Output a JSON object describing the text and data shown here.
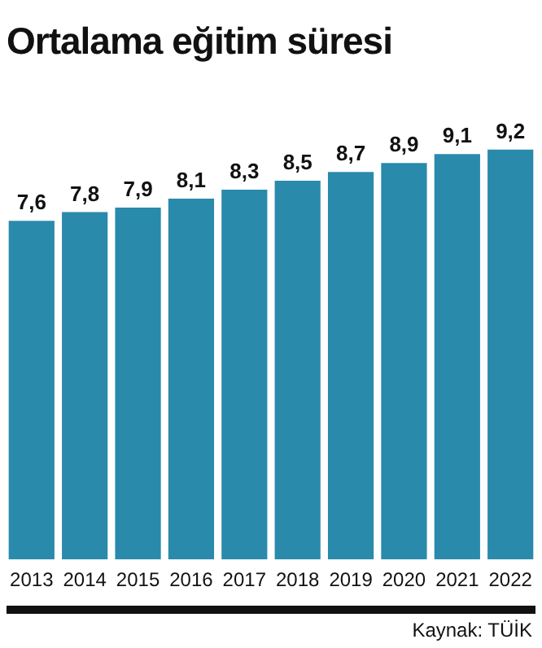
{
  "chart_data": {
    "type": "bar",
    "title": "Ortalama eğitim süresi",
    "categories": [
      "2013",
      "2014",
      "2015",
      "2016",
      "2017",
      "2018",
      "2019",
      "2020",
      "2021",
      "2022"
    ],
    "values": [
      7.6,
      7.8,
      7.9,
      8.1,
      8.3,
      8.5,
      8.7,
      8.9,
      9.1,
      9.2
    ],
    "color": "#2a8aab",
    "data_labels": true,
    "value_labels": [
      "7,6",
      "7,8",
      "7,9",
      "8,1",
      "8,3",
      "8,5",
      "8,7",
      "8,9",
      "9,1",
      "9,2"
    ],
    "grid": false,
    "legend": false,
    "tick_labels": "x",
    "annotations": [
      "Kaynak: TÜİK"
    ]
  }
}
